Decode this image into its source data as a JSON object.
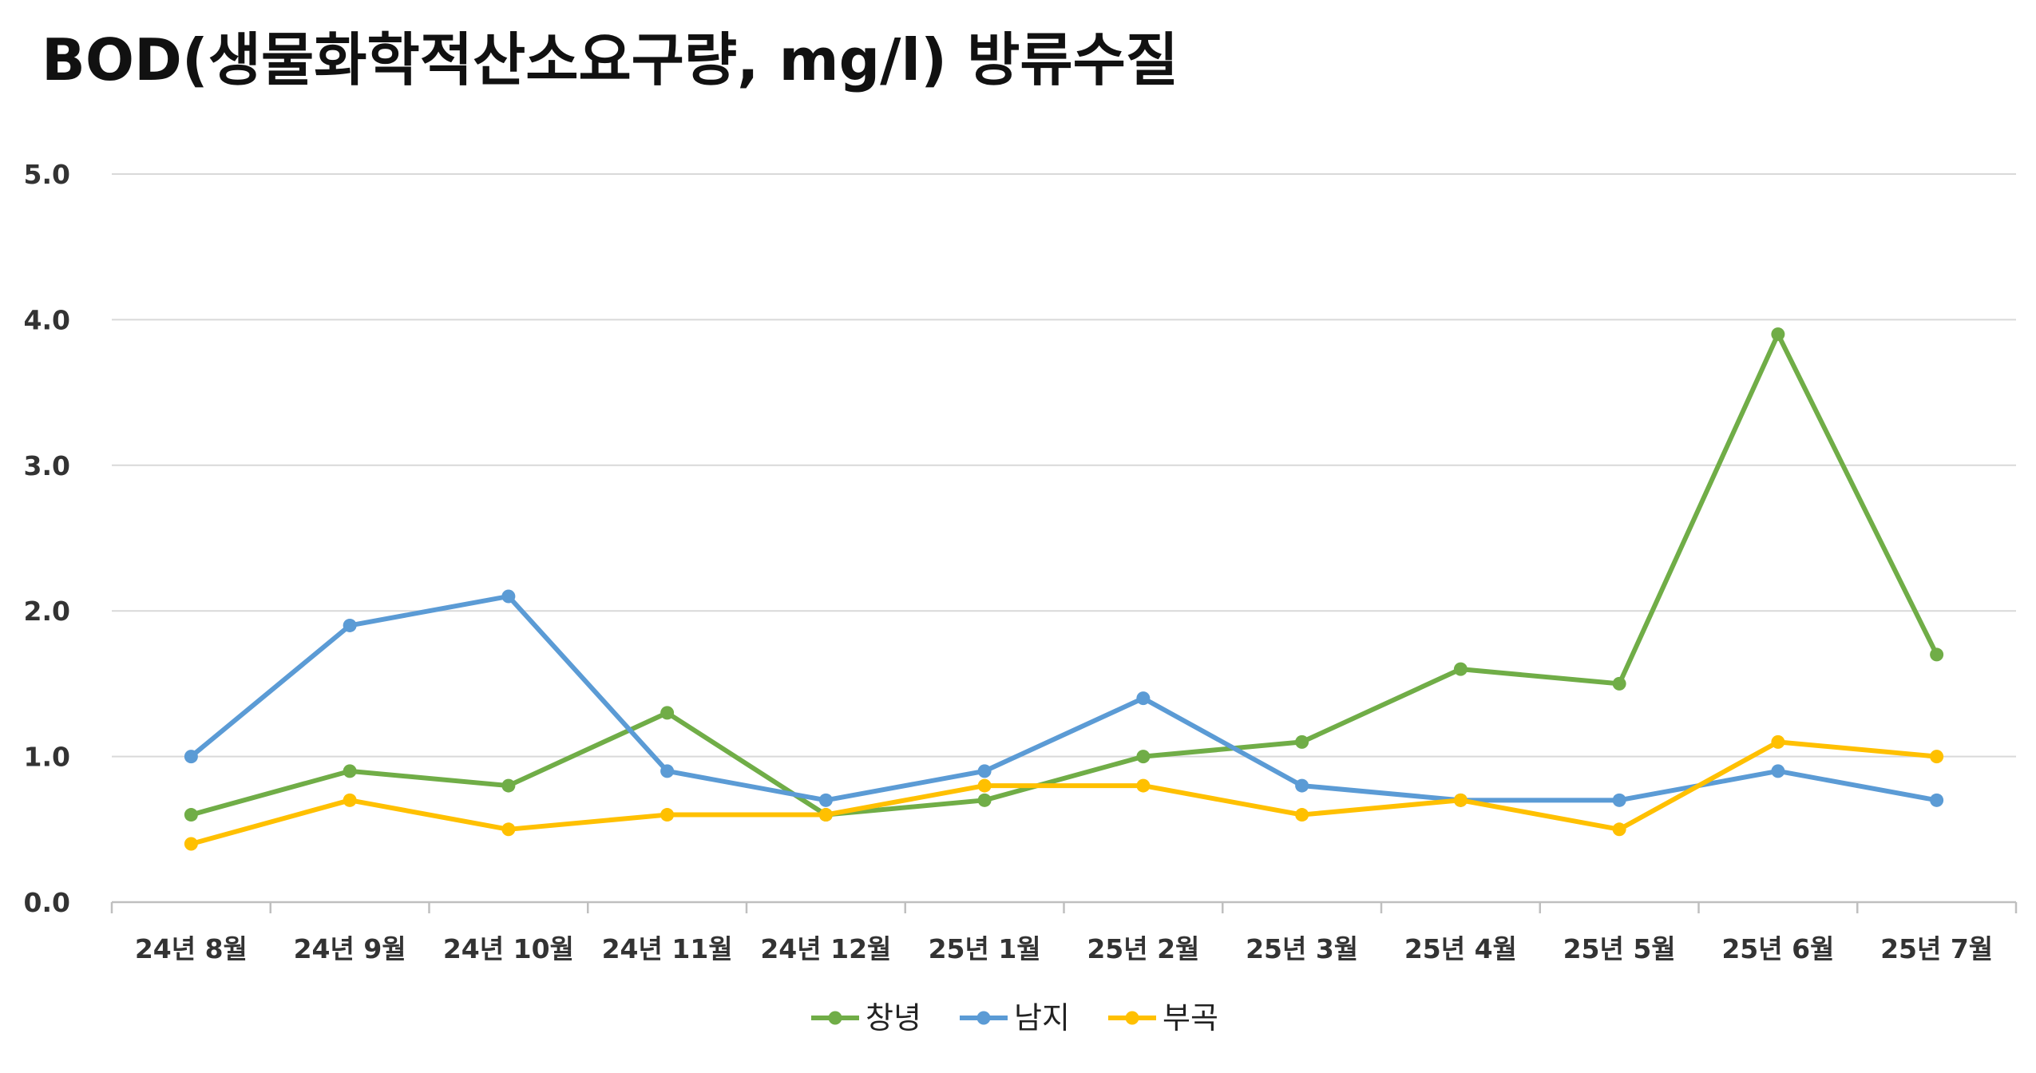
{
  "chart_data": {
    "type": "line",
    "title": "BOD(생물화학적산소요구량, mg/l) 방류수질",
    "xlabel": "",
    "ylabel": "",
    "categories": [
      "24년 8월",
      "24년 9월",
      "24년 10월",
      "24년 11월",
      "24년 12월",
      "25년 1월",
      "25년 2월",
      "25년 3월",
      "25년 4월",
      "25년 5월",
      "25년 6월",
      "25년 7월"
    ],
    "ylim": [
      0,
      5
    ],
    "yticks": [
      "0.0",
      "1.0",
      "2.0",
      "3.0",
      "4.0",
      "5.0"
    ],
    "grid": true,
    "legend_position": "bottom",
    "series": [
      {
        "name": "창녕",
        "color": "#70ad47",
        "values": [
          0.6,
          0.9,
          0.8,
          1.3,
          0.6,
          0.7,
          1.0,
          1.1,
          1.6,
          1.5,
          3.9,
          1.7
        ]
      },
      {
        "name": "남지",
        "color": "#5b9bd5",
        "values": [
          1.0,
          1.9,
          2.1,
          0.9,
          0.7,
          0.9,
          1.4,
          0.8,
          0.7,
          0.7,
          0.9,
          0.7
        ]
      },
      {
        "name": "부곡",
        "color": "#ffc000",
        "values": [
          0.4,
          0.7,
          0.5,
          0.6,
          0.6,
          0.8,
          0.8,
          0.6,
          0.7,
          0.5,
          1.1,
          1.0
        ]
      }
    ]
  }
}
